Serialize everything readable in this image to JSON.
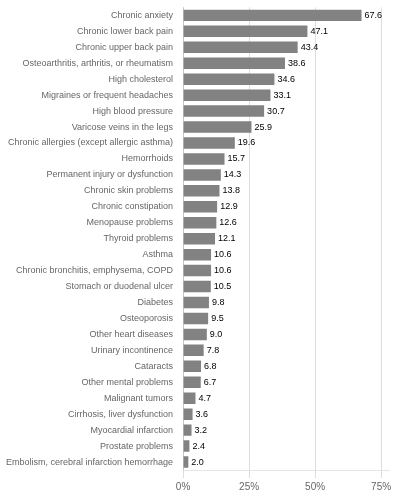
{
  "chart_data": {
    "type": "bar",
    "orientation": "horizontal",
    "categories": [
      "Embolism, cerebral infarction hemorrhage",
      "Prostate problems",
      "Myocardial infarction",
      "Cirrhosis, liver dysfunction",
      "Malignant tumors",
      "Other mental problems",
      "Cataracts",
      "Urinary incontinence",
      "Other heart diseases",
      "Osteoporosis",
      "Diabetes",
      "Stomach or duodenal ulcer",
      "Chronic bronchitis, emphysema, COPD",
      "Asthma",
      "Thyroid problems",
      "Menopause problems",
      "Chronic constipation",
      "Chronic skin problems",
      "Permanent injury or dysfunction",
      "Hemorrhoids",
      "Chronic allergies (except allergic asthma)",
      "Varicose veins in the legs",
      "High blood pressure",
      "Migraines or frequent headaches",
      "High cholesterol",
      "Osteoarthritis, arthritis, or rheumatism",
      "Chronic upper back pain",
      "Chronic lower back pain",
      "Chronic anxiety"
    ],
    "values": [
      2.0,
      2.4,
      3.2,
      3.6,
      4.7,
      6.7,
      6.8,
      7.8,
      9.0,
      9.5,
      9.8,
      10.5,
      10.6,
      10.6,
      12.1,
      12.6,
      12.9,
      13.8,
      14.3,
      15.7,
      19.6,
      25.9,
      30.7,
      33.1,
      34.6,
      38.6,
      43.4,
      47.1,
      67.6
    ],
    "value_labels": [
      "2.0",
      "2.4",
      "3.2",
      "3.6",
      "4.7",
      "6.7",
      "6.8",
      "7.8",
      "9.0",
      "9.5",
      "9.8",
      "10.5",
      "10.6",
      "10.6",
      "12.1",
      "12.6",
      "12.9",
      "13.8",
      "14.3",
      "15.7",
      "19.6",
      "25.9",
      "30.7",
      "33.1",
      "34.6",
      "38.6",
      "43.4",
      "47.1",
      "67.6"
    ],
    "data_labels": true,
    "color": "#828282",
    "xlim": [
      0,
      78
    ],
    "xticks": [
      {
        "value": 0,
        "label": "0%"
      },
      {
        "value": 25,
        "label": "25%"
      },
      {
        "value": 50,
        "label": "50%"
      },
      {
        "value": 75,
        "label": "75%"
      }
    ],
    "grid": true
  }
}
